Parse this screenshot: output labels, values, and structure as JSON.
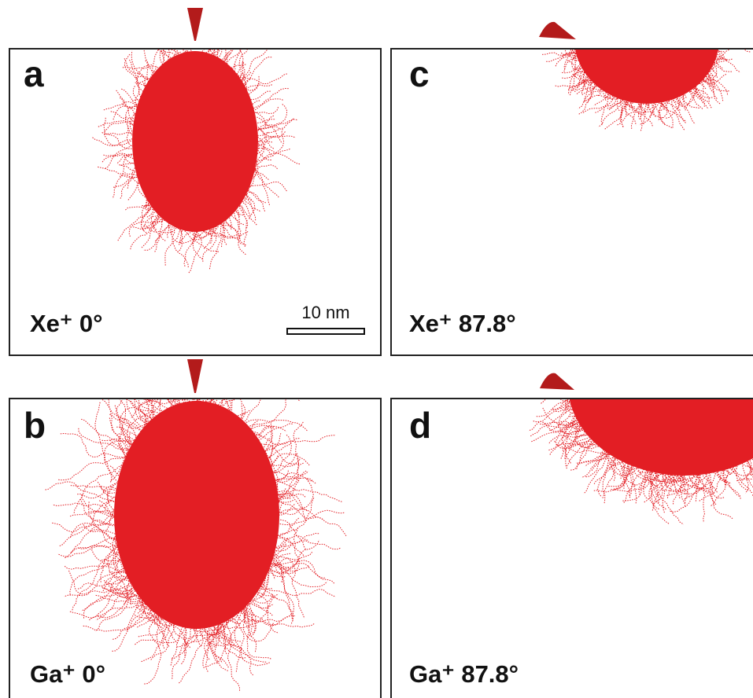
{
  "panels": [
    {
      "label": "a",
      "caption": "Xe⁺ 0°",
      "scale_bar": "10 nm"
    },
    {
      "label": "b",
      "caption": "Ga⁺ 0°"
    },
    {
      "label": "c",
      "caption": "Xe⁺ 87.8°"
    },
    {
      "label": "d",
      "caption": "Ga⁺ 87.8°"
    }
  ]
}
